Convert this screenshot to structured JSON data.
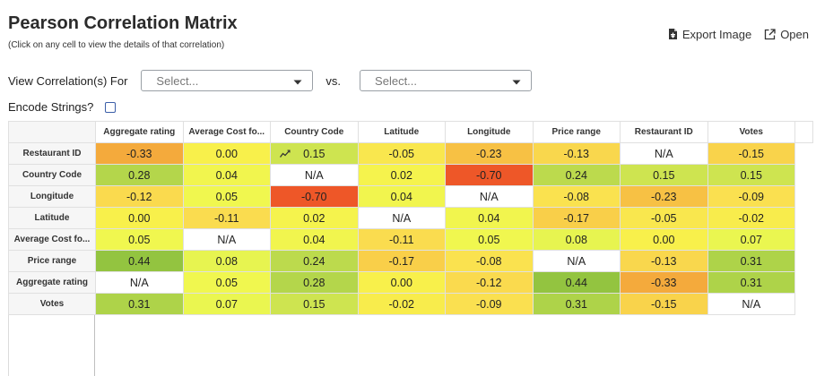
{
  "header": {
    "title": "Pearson Correlation Matrix",
    "subtitle": "(Click on any cell to view the details of that correlation)",
    "export_label": "Export Image",
    "open_label": "Open"
  },
  "controls": {
    "view_label": "View Correlation(s) For",
    "select1_placeholder": "Select...",
    "vs_label": "vs.",
    "select2_placeholder": "Select...",
    "encode_label": "Encode Strings?"
  },
  "matrix": {
    "columns": [
      "Aggregate rating",
      "Average Cost fo...",
      "Country Code",
      "Latitude",
      "Longitude",
      "Price range",
      "Restaurant ID",
      "Votes"
    ],
    "rows": [
      {
        "label": "Restaurant ID",
        "values": [
          "-0.33",
          "0.00",
          "0.15",
          "-0.05",
          "-0.23",
          "-0.13",
          "N/A",
          "-0.15"
        ]
      },
      {
        "label": "Country Code",
        "values": [
          "0.28",
          "0.04",
          "N/A",
          "0.02",
          "-0.70",
          "0.24",
          "0.15",
          "0.15"
        ]
      },
      {
        "label": "Longitude",
        "values": [
          "-0.12",
          "0.05",
          "-0.70",
          "0.04",
          "N/A",
          "-0.08",
          "-0.23",
          "-0.09"
        ]
      },
      {
        "label": "Latitude",
        "values": [
          "0.00",
          "-0.11",
          "0.02",
          "N/A",
          "0.04",
          "-0.17",
          "-0.05",
          "-0.02"
        ]
      },
      {
        "label": "Average Cost fo...",
        "values": [
          "0.05",
          "N/A",
          "0.04",
          "-0.11",
          "0.05",
          "0.08",
          "0.00",
          "0.07"
        ]
      },
      {
        "label": "Price range",
        "values": [
          "0.44",
          "0.08",
          "0.24",
          "-0.17",
          "-0.08",
          "N/A",
          "-0.13",
          "0.31"
        ]
      },
      {
        "label": "Aggregate rating",
        "values": [
          "N/A",
          "0.05",
          "0.28",
          "0.00",
          "-0.12",
          "0.44",
          "-0.33",
          "0.31"
        ]
      },
      {
        "label": "Votes",
        "values": [
          "0.31",
          "0.07",
          "0.15",
          "-0.02",
          "-0.09",
          "0.31",
          "-0.15",
          "N/A"
        ]
      }
    ],
    "trend_icon_cell": {
      "row": 0,
      "col": 2
    }
  }
}
